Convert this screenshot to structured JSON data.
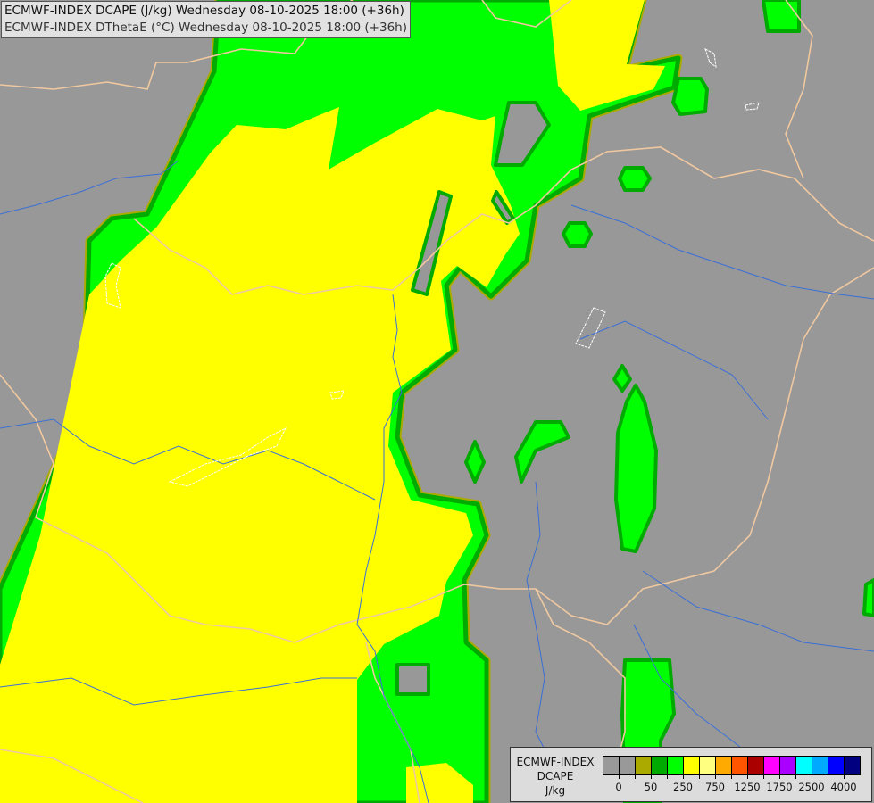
{
  "header": {
    "line1": "ECMWF-INDEX DCAPE (J/kg) Wednesday 08-10-2025 18:00 (+36h)",
    "line2": "ECMWF-INDEX DThetaE (°C) Wednesday 08-10-2025 18:00 (+36h)"
  },
  "colors": {
    "background": "#989898",
    "yellow": "#ffff00",
    "green": "#00ff00",
    "dark_green": "#00aa00",
    "olive": "#aaaa00",
    "border": "#f0c8a0",
    "river": "#3b6fd6",
    "dthetae_contour": "#ffffff"
  },
  "legend": {
    "title_lines": [
      "ECMWF-INDEX",
      "DCAPE",
      "J/kg"
    ],
    "swatches": [
      "#999999",
      "#999999",
      "#aaaa00",
      "#00aa00",
      "#00ff00",
      "#ffff00",
      "#ffff80",
      "#ffaa00",
      "#ff5500",
      "#aa0000",
      "#ff00ff",
      "#aa00ff",
      "#00ffff",
      "#00aaff",
      "#0000ff",
      "#000080"
    ],
    "labels": [
      {
        "text": "0",
        "boundary": 1
      },
      {
        "text": "50",
        "boundary": 3
      },
      {
        "text": "250",
        "boundary": 5
      },
      {
        "text": "750",
        "boundary": 7
      },
      {
        "text": "1250",
        "boundary": 9
      },
      {
        "text": "1750",
        "boundary": 11
      },
      {
        "text": "2500",
        "boundary": 13
      },
      {
        "text": "4000",
        "boundary": 15
      }
    ]
  }
}
